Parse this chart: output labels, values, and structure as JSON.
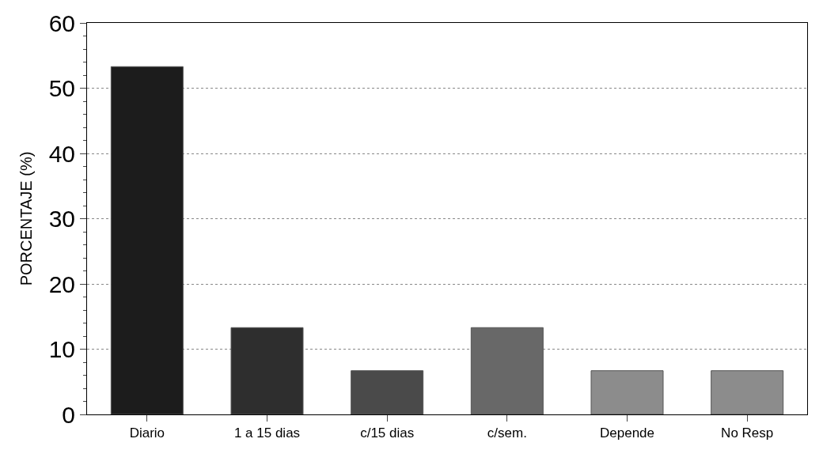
{
  "chart_data": {
    "type": "bar",
    "ylabel": "PORCENTAJE (%)",
    "categories": [
      "Diario",
      "1 a 15 dias",
      "c/15 dias",
      "c/sem.",
      "Depende",
      "No Resp"
    ],
    "values": [
      53.3,
      13.3,
      6.7,
      13.3,
      6.7,
      6.7
    ],
    "colors": [
      "#1c1c1c",
      "#2e2e2e",
      "#4a4a4a",
      "#686868",
      "#8c8c8c",
      "#8c8c8c"
    ],
    "ylim": [
      0,
      60
    ],
    "yticks": [
      0,
      10,
      20,
      30,
      40,
      50,
      60
    ],
    "grid": "y"
  }
}
